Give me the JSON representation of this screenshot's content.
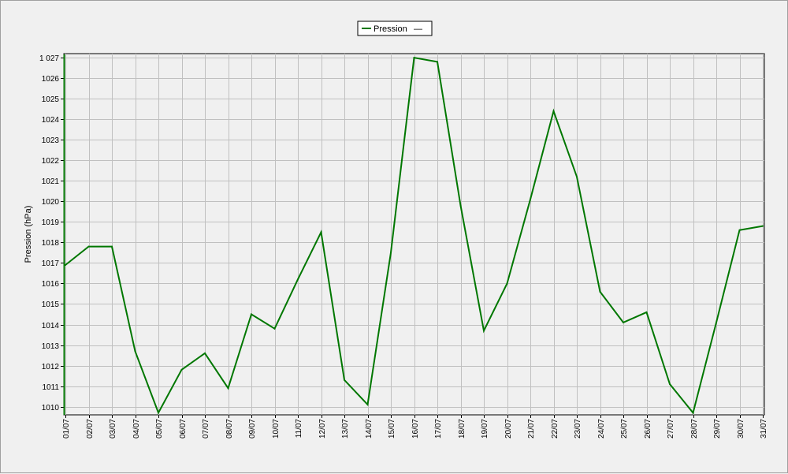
{
  "chart_data": {
    "type": "line",
    "title": "",
    "xlabel": "",
    "ylabel": "Pression (hPa)",
    "ylim": [
      1009.6,
      1027.2
    ],
    "grid": true,
    "legend_position": "top-center",
    "legend_entries": [
      "Pression"
    ],
    "legend_trailing_symbol": "—",
    "y_ticks": [
      1010,
      1011,
      1012,
      1013,
      1014,
      1015,
      1016,
      1017,
      1018,
      1019,
      1020,
      1021,
      1022,
      1023,
      1024,
      1025,
      1026,
      1027
    ],
    "y_tick_labels": [
      "1010",
      "1011",
      "1012",
      "1013",
      "1014",
      "1015",
      "1016",
      "1017",
      "1018",
      "1019",
      "1020",
      "1021",
      "1022",
      "1023",
      "1024",
      "1025",
      "1026",
      "1 027"
    ],
    "categories": [
      "01/07",
      "02/07",
      "03/07",
      "04/07",
      "05/07",
      "06/07",
      "07/07",
      "08/07",
      "09/07",
      "10/07",
      "11/07",
      "12/07",
      "13/07",
      "14/07",
      "15/07",
      "16/07",
      "17/07",
      "18/07",
      "19/07",
      "20/07",
      "21/07",
      "22/07",
      "23/07",
      "24/07",
      "25/07",
      "26/07",
      "27/07",
      "28/07",
      "29/07",
      "30/07",
      "31/07"
    ],
    "series": [
      {
        "name": "Pression",
        "color": "#007700",
        "values": [
          1016.9,
          1017.8,
          1017.8,
          1012.7,
          1009.7,
          1011.8,
          1012.6,
          1010.9,
          1014.5,
          1013.8,
          1016.2,
          1018.5,
          1011.3,
          1010.1,
          1017.5,
          1027.0,
          1026.8,
          1019.8,
          1013.7,
          1016.0,
          1020.1,
          1024.4,
          1021.2,
          1015.6,
          1014.1,
          1014.6,
          1011.1,
          1009.7,
          1014.1,
          1018.6,
          1018.8
        ]
      }
    ]
  }
}
